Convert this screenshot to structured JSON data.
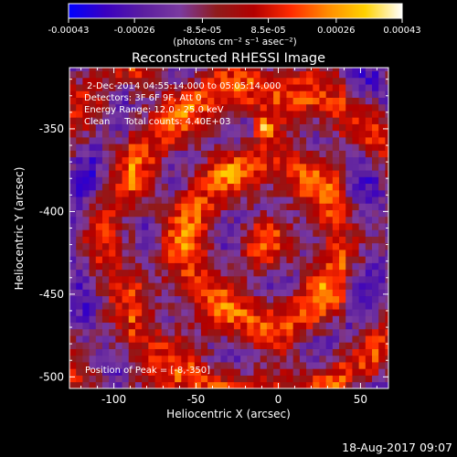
{
  "colorbar": {
    "tick_labels": [
      "-0.00043",
      "-0.00026",
      "-8.5e-05",
      "8.5e-05",
      "0.00026",
      "0.00043"
    ],
    "tick_values": [
      -0.00043,
      -0.00026,
      -8.5e-05,
      8.5e-05,
      0.00026,
      0.00043
    ],
    "range": [
      -0.00043,
      0.00043
    ],
    "units_label": "(photons cm⁻² s⁻¹ asec⁻²)",
    "colormap_stops": [
      "#0000ff",
      "#3a00c0",
      "#5b1ea0",
      "#7a3aa0",
      "#8f1b1b",
      "#b30000",
      "#ff2b00",
      "#ff8c00",
      "#ffd200",
      "#ffffff"
    ]
  },
  "chart_data": {
    "type": "heatmap",
    "title": "Reconstructed RHESSI Image",
    "xlabel": "Heliocentric X (arcsec)",
    "ylabel": "Heliocentric Y (arcsec)",
    "xlim": [
      -127,
      67
    ],
    "ylim": [
      -507,
      -313
    ],
    "x_ticks": [
      -100,
      -50,
      0,
      50
    ],
    "y_ticks": [
      -500,
      -450,
      -400,
      -350
    ],
    "x_tick_labels": [
      "-100",
      "-50",
      "0",
      "50"
    ],
    "y_tick_labels": [
      "-500",
      "-450",
      "-400",
      "-350"
    ],
    "peak": [
      -8,
      -350
    ],
    "grid": false,
    "annotations": [
      "2-Dec-2014 04:55:14.000 to 05:05:14.000",
      "Detectors: 3F 6F 9F, Att 0",
      "Energy Range: 12.0 - 25.0 keV",
      "Clean     Total counts: 4.40E+03"
    ],
    "peak_annotation": "Position of Peak = [-8,-350]"
  },
  "footer": {
    "timestamp": "18-Aug-2017 09:07"
  }
}
